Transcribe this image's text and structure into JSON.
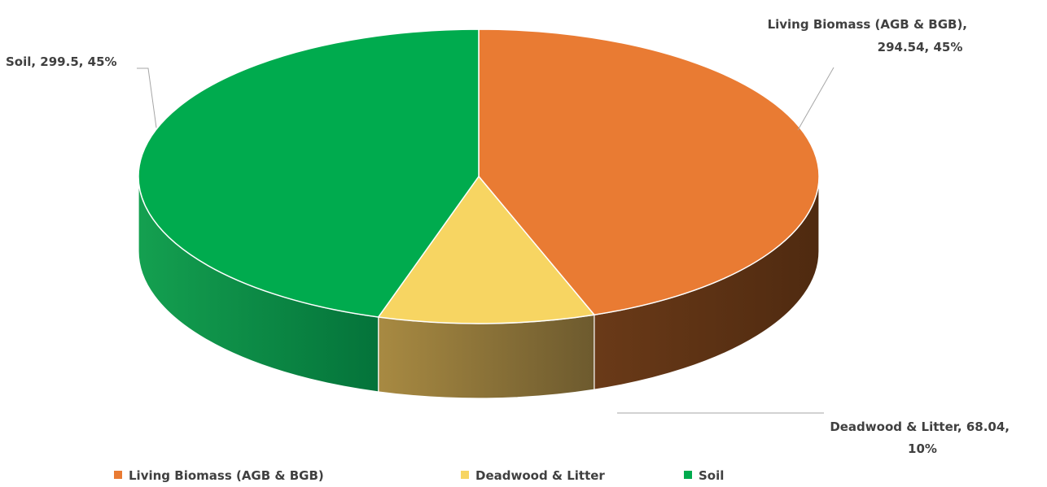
{
  "chart_data": {
    "type": "pie",
    "style": "3d",
    "title": "",
    "categories": [
      "Living Biomass (AGB & BGB)",
      "Deadwood & Litter",
      "Soil"
    ],
    "values": [
      294.54,
      68.04,
      299.5
    ],
    "percentages": [
      "45%",
      "10%",
      "45%"
    ],
    "colors": [
      "#E97B33",
      "#F7D562",
      "#00AB4E"
    ],
    "side_colors": [
      "#5E3315",
      "#8C7033",
      "#0E8A43"
    ],
    "data_labels": [
      {
        "line1": "Living Biomass (AGB & BGB),",
        "line2": "294.54, 45%"
      },
      {
        "line1": "Deadwood & Litter, 68.04,",
        "line2": "10%"
      },
      {
        "line1": "Soil, 299.5, 45%",
        "line2": ""
      }
    ],
    "legend": {
      "position": "bottom",
      "items": [
        "Living Biomass (AGB & BGB)",
        "Deadwood & Litter",
        "Soil"
      ]
    }
  }
}
